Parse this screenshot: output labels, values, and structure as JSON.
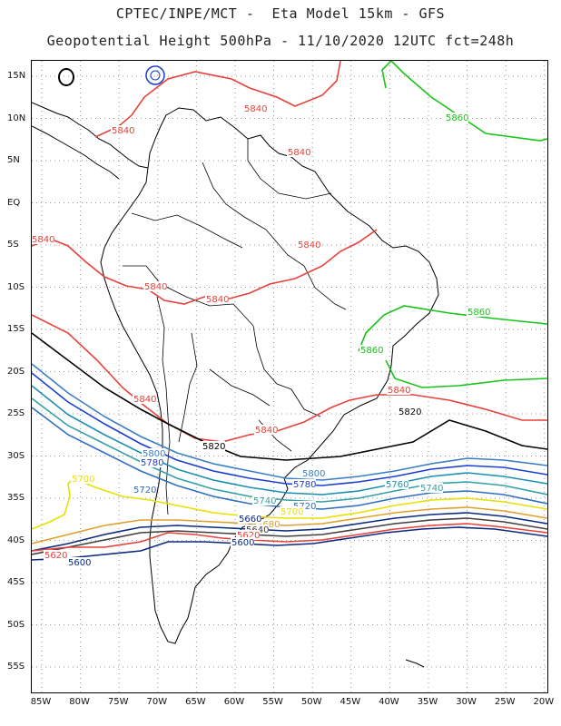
{
  "header": {
    "title_line1": "CPTEC/INPE/MCT -  Eta Model 15km - GFS",
    "title_line2": "Geopotential Height 500hPa - 11/10/2020 12UTC fct=248h"
  },
  "axes": {
    "lat_labels": [
      "15N",
      "10N",
      "5N",
      "EQ",
      "5S",
      "10S",
      "15S",
      "20S",
      "25S",
      "30S",
      "35S",
      "40S",
      "45S",
      "50S",
      "55S"
    ],
    "lon_labels": [
      "85W",
      "80W",
      "75W",
      "70W",
      "65W",
      "60W",
      "55W",
      "50W",
      "45W",
      "40W",
      "35W",
      "30W",
      "25W",
      "20W"
    ]
  },
  "contours": [
    {
      "value": "5860",
      "color": "#19c419"
    },
    {
      "value": "5840",
      "color": "#e8413a"
    },
    {
      "value": "5820",
      "color": "#000000"
    },
    {
      "value": "5800",
      "color": "#3a7fc4"
    },
    {
      "value": "5780",
      "color": "#1a3fd0"
    },
    {
      "value": "5760",
      "color": "#1a8fb0"
    },
    {
      "value": "5740",
      "color": "#35a0a8"
    },
    {
      "value": "5720",
      "color": "#2e6fc0"
    },
    {
      "value": "5700",
      "color": "#e8e000"
    },
    {
      "value": "5680",
      "color": "#e0a030"
    },
    {
      "value": "5660",
      "color": "#0a2a80"
    },
    {
      "value": "5640",
      "color": "#404040"
    },
    {
      "value": "5620",
      "color": "#e8413a"
    },
    {
      "value": "5600",
      "color": "#0a2a80"
    }
  ],
  "contour_labels": [
    {
      "text": "5840",
      "color": "#e8413a",
      "ref": "a"
    },
    {
      "text": "5840",
      "color": "#e8413a",
      "ref": "b"
    },
    {
      "text": "5840",
      "color": "#e8413a",
      "ref": "c"
    },
    {
      "text": "5840",
      "color": "#e8413a",
      "ref": "d"
    },
    {
      "text": "5840",
      "color": "#e8413a",
      "ref": "e"
    },
    {
      "text": "5840",
      "color": "#e8413a",
      "ref": "f"
    },
    {
      "text": "5840",
      "color": "#e8413a",
      "ref": "g"
    },
    {
      "text": "5840",
      "color": "#e8413a",
      "ref": "h"
    },
    {
      "text": "5840",
      "color": "#e8413a",
      "ref": "i"
    },
    {
      "text": "5840",
      "color": "#e8413a",
      "ref": "j"
    },
    {
      "text": "5860",
      "color": "#19c419",
      "ref": "k"
    },
    {
      "text": "5860",
      "color": "#19c419",
      "ref": "l"
    },
    {
      "text": "5860",
      "color": "#19c419",
      "ref": "m"
    },
    {
      "text": "5820",
      "color": "#000000",
      "ref": "n"
    },
    {
      "text": "5820",
      "color": "#000000",
      "ref": "o"
    },
    {
      "text": "5800",
      "color": "#3a7fc4",
      "ref": "p"
    },
    {
      "text": "5800",
      "color": "#3a7fc4",
      "ref": "q"
    },
    {
      "text": "5780",
      "color": "#1a3fd0",
      "ref": "r"
    },
    {
      "text": "5780",
      "color": "#1a3fd0",
      "ref": "s"
    },
    {
      "text": "5760",
      "color": "#1a8fb0",
      "ref": "t"
    },
    {
      "text": "5740",
      "color": "#35a0a8",
      "ref": "u"
    },
    {
      "text": "5740",
      "color": "#35a0a8",
      "ref": "v"
    },
    {
      "text": "5720",
      "color": "#2e6fc0",
      "ref": "w"
    },
    {
      "text": "5720",
      "color": "#2e6fc0",
      "ref": "x"
    },
    {
      "text": "5700",
      "color": "#e8e000",
      "ref": "y"
    },
    {
      "text": "5700",
      "color": "#e8e000",
      "ref": "z"
    },
    {
      "text": "5680",
      "color": "#e0a030",
      "ref": "aa"
    },
    {
      "text": "5660",
      "color": "#0a2a80",
      "ref": "ab"
    },
    {
      "text": "5640",
      "color": "#404040",
      "ref": "ac"
    },
    {
      "text": "5620",
      "color": "#e8413a",
      "ref": "ad"
    },
    {
      "text": "5620",
      "color": "#e8413a",
      "ref": "ae"
    },
    {
      "text": "5600",
      "color": "#0a2a80",
      "ref": "af"
    },
    {
      "text": "5600",
      "color": "#0a2a80",
      "ref": "ag"
    }
  ]
}
